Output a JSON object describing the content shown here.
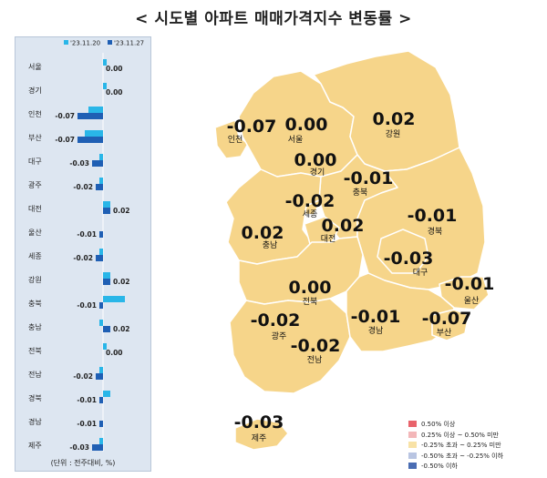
{
  "title": "< 시도별 아파트 매매가격지수 변동률 >",
  "colors": {
    "series_prev": "#29b6e8",
    "series_curr": "#1f5fb4",
    "panel_bg": "#dde6f1",
    "map_fill": "#f6d58a",
    "map_stroke": "#ffffff",
    "rise_high": "#e8636b",
    "rise_mid": "#f3b7b9",
    "flat": "#f8e2a6",
    "fall_mid": "#b9c5e2",
    "fall_high": "#4a6db3"
  },
  "chart_data": [
    {
      "type": "bar",
      "orientation": "horizontal",
      "categories": [
        "서울",
        "경기",
        "인천",
        "부산",
        "대구",
        "광주",
        "대전",
        "울산",
        "세종",
        "강원",
        "충북",
        "충남",
        "전북",
        "전남",
        "경북",
        "경남",
        "제주"
      ],
      "series": [
        {
          "name": "'23.11.20",
          "values": [
            0.01,
            0.01,
            -0.04,
            -0.05,
            -0.01,
            -0.01,
            0.02,
            0.0,
            -0.01,
            0.02,
            0.06,
            -0.01,
            0.01,
            -0.01,
            0.02,
            0.0,
            -0.01
          ]
        },
        {
          "name": "'23.11.27",
          "values": [
            0.0,
            0.0,
            -0.07,
            -0.07,
            -0.03,
            -0.02,
            0.02,
            -0.01,
            -0.02,
            0.02,
            -0.01,
            0.02,
            0.0,
            -0.02,
            -0.01,
            -0.01,
            -0.03
          ]
        }
      ],
      "data_labels": [
        "0.00",
        "0.00",
        "-0.07",
        "-0.07",
        "-0.03",
        "-0.02",
        "0.02",
        "-0.01",
        "-0.02",
        "0.02",
        "-0.01",
        "0.02",
        "0.00",
        "-0.02",
        "-0.01",
        "-0.01",
        "-0.03"
      ],
      "unit_note": "(단위 : 전주대비, %)"
    },
    {
      "type": "choropleth",
      "regions": [
        {
          "name": "인천",
          "value": "-0.07"
        },
        {
          "name": "서울",
          "value": "0.00"
        },
        {
          "name": "경기",
          "value": "0.00"
        },
        {
          "name": "강원",
          "value": "0.02"
        },
        {
          "name": "충북",
          "value": "-0.01"
        },
        {
          "name": "세종",
          "value": "-0.02"
        },
        {
          "name": "충남",
          "value": "0.02"
        },
        {
          "name": "대전",
          "value": "0.02"
        },
        {
          "name": "경북",
          "value": "-0.01"
        },
        {
          "name": "대구",
          "value": "-0.03"
        },
        {
          "name": "울산",
          "value": "-0.01"
        },
        {
          "name": "전북",
          "value": "0.00"
        },
        {
          "name": "광주",
          "value": "-0.02"
        },
        {
          "name": "전남",
          "value": "-0.02"
        },
        {
          "name": "경남",
          "value": "-0.01"
        },
        {
          "name": "부산",
          "value": "-0.07"
        },
        {
          "name": "제주",
          "value": "-0.03"
        }
      ],
      "legend": [
        {
          "label": "0.50% 이상",
          "color": "#e8636b"
        },
        {
          "label": "0.25% 이상 ~ 0.50% 미만",
          "color": "#f3b7b9"
        },
        {
          "label": "-0.25% 초과 ~ 0.25% 미만",
          "color": "#f8e2a6"
        },
        {
          "label": "-0.50% 초과 ~ -0.25% 이하",
          "color": "#b9c5e2"
        },
        {
          "label": "-0.50% 이하",
          "color": "#4a6db3"
        }
      ]
    }
  ]
}
